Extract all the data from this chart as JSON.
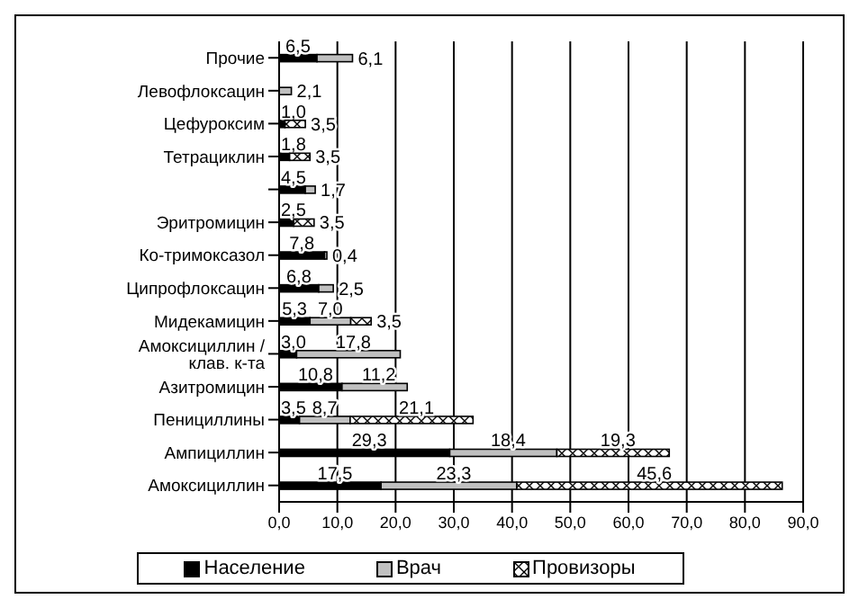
{
  "chart_data": {
    "type": "bar",
    "orientation": "horizontal",
    "stacked": true,
    "categories": [
      "Прочие",
      "Левофлоксацин",
      "Цефуроксим",
      "Тетрациклин",
      null,
      "Эритромицин",
      "Ко-тримоксазол",
      "Ципрофлоксацин",
      "Мидекамицин",
      "Амоксициллин / клав. к-та",
      "Азитромицин",
      "Пенициллины",
      "Ампициллин",
      "Амоксициллин"
    ],
    "series": [
      {
        "name": "Население",
        "color": "#000000",
        "values": [
          6.5,
          null,
          1.0,
          1.8,
          4.5,
          2.5,
          7.8,
          6.8,
          5.3,
          3.0,
          10.8,
          3.5,
          29.3,
          17.5
        ],
        "value_labels": [
          "6,5",
          null,
          "1,0",
          "1,8",
          "4,5",
          "2,5",
          "7,8",
          "6,8",
          "5,3",
          "3,0",
          "10,8",
          "3,5",
          "29,3",
          "17,5"
        ]
      },
      {
        "name": "Врач",
        "color": "#c0c0c0",
        "values": [
          6.1,
          2.1,
          null,
          null,
          1.7,
          null,
          0.4,
          2.5,
          7.0,
          17.8,
          11.2,
          8.7,
          18.4,
          23.3
        ],
        "value_labels": [
          "6,1",
          "2,1",
          null,
          null,
          "1,7",
          null,
          "0,4",
          "2,5",
          "7,0",
          "17,8",
          "11,2",
          "8,7",
          "18,4",
          "23,3"
        ]
      },
      {
        "name": "Провизоры",
        "color": "#ffffff",
        "values": [
          null,
          null,
          3.5,
          3.5,
          null,
          3.5,
          null,
          null,
          3.5,
          null,
          null,
          21.1,
          19.3,
          45.6
        ],
        "value_labels": [
          null,
          null,
          "3,5",
          "3,5",
          null,
          "3,5",
          null,
          null,
          "3,5",
          null,
          null,
          "21,1",
          "19,3",
          "45,6"
        ]
      }
    ],
    "xlim": [
      0,
      90
    ],
    "xticks": [
      {
        "value": 0,
        "label": "0,0"
      },
      {
        "value": 10,
        "label": "10,0"
      },
      {
        "value": 20,
        "label": "20,0"
      },
      {
        "value": 30,
        "label": "30,0"
      },
      {
        "value": 40,
        "label": "40,0"
      },
      {
        "value": 50,
        "label": "50,0"
      },
      {
        "value": 60,
        "label": "60,0"
      },
      {
        "value": 70,
        "label": "70,0"
      },
      {
        "value": 80,
        "label": "80,0"
      },
      {
        "value": 90,
        "label": "90,0"
      }
    ],
    "grid": "x",
    "legend": "bottom"
  }
}
